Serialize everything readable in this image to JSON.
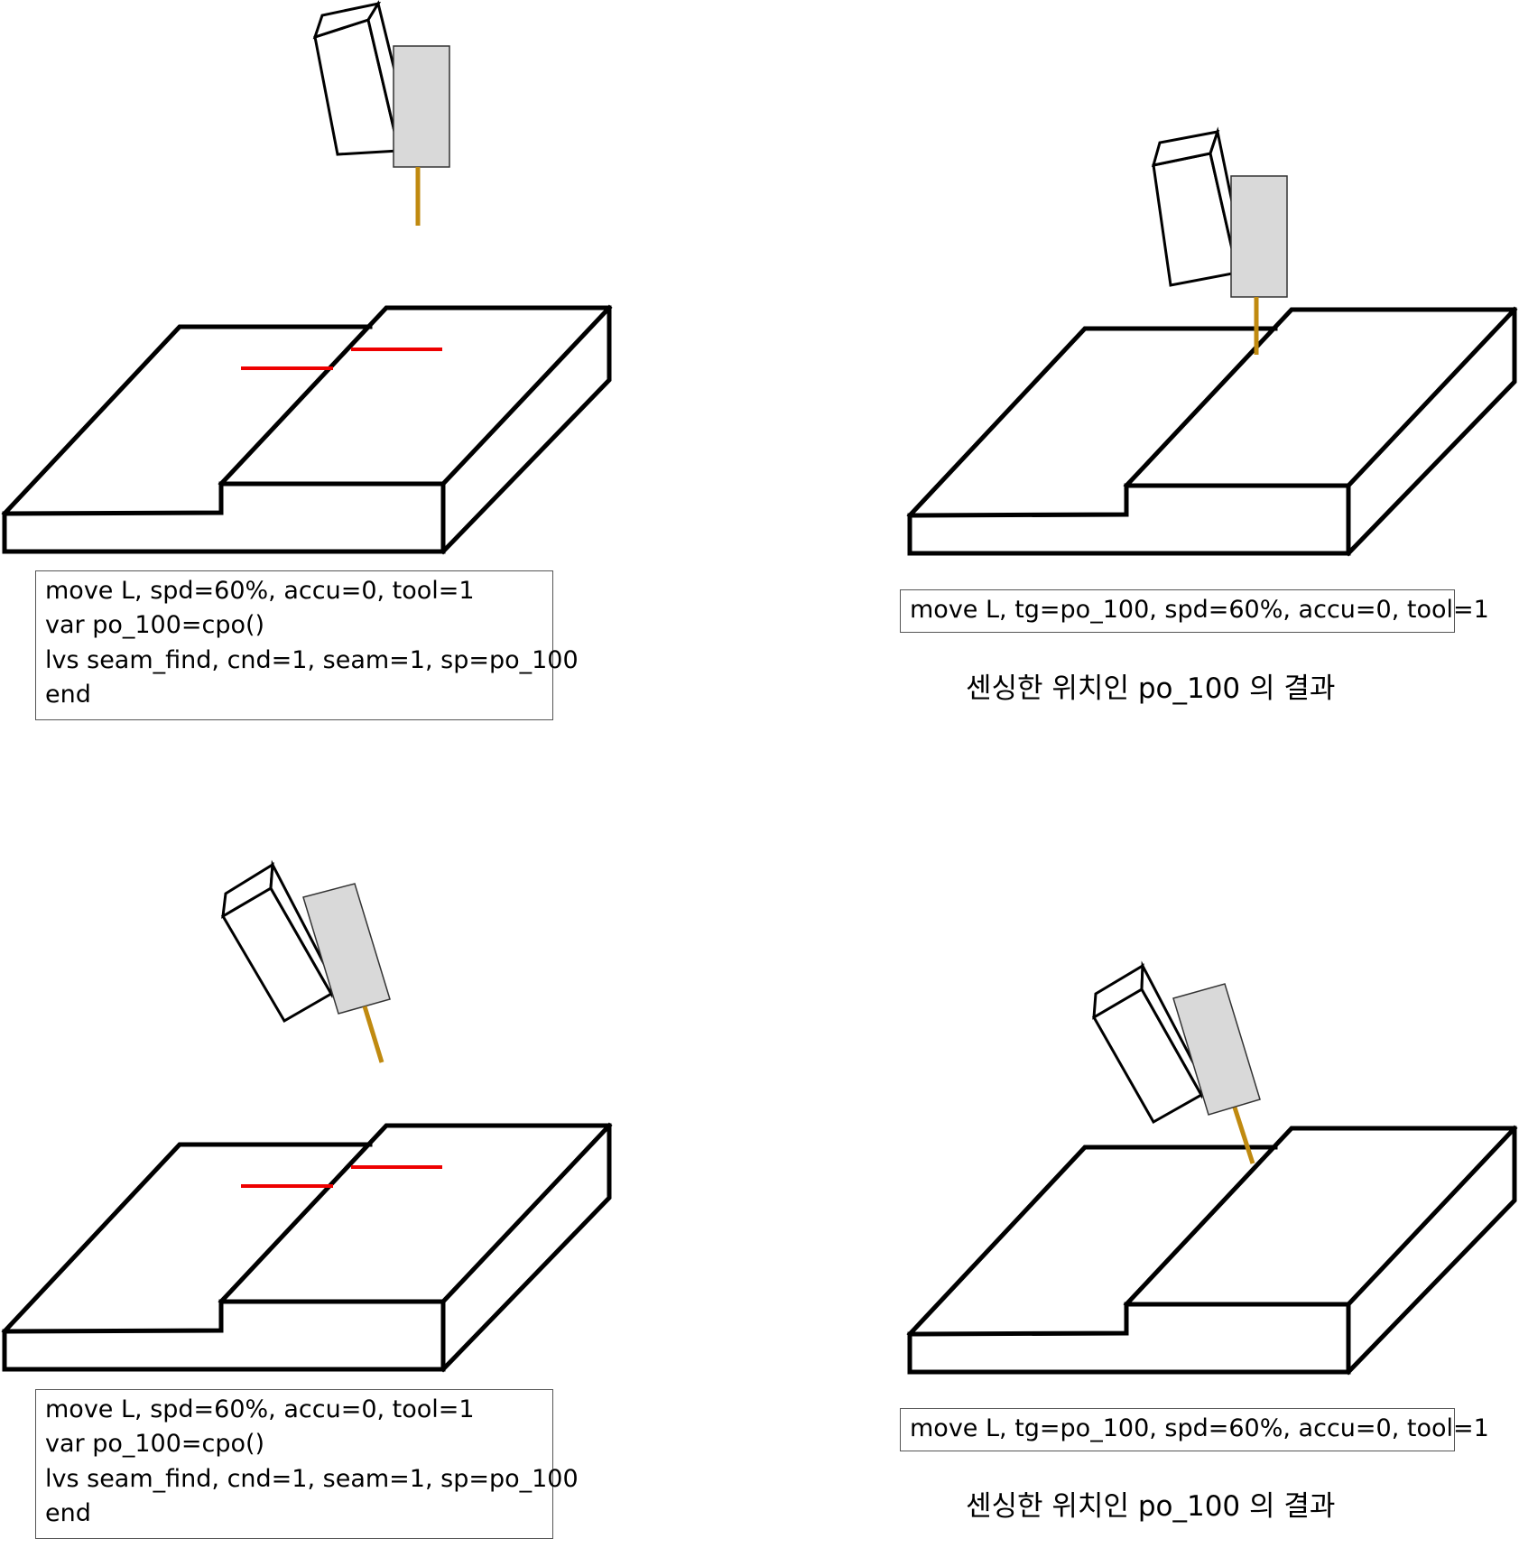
{
  "colors": {
    "outline": "#000000",
    "laser_line": "#ee0000",
    "sensor_fill": "#d9d9d9",
    "wire": "#c08a10"
  },
  "panels": [
    {
      "code_lines": [
        "move L, spd=60%, accu=0, tool=1",
        "var po_100=cpo()",
        "lvs seam_find, cnd=1, seam=1, sp=po_100",
        "end"
      ]
    },
    {
      "code_lines": [
        "move L, tg=po_100, spd=60%, accu=0, tool=1"
      ],
      "caption": "센싱한 위치인 po_100 의 결과"
    },
    {
      "code_lines": [
        "move L, spd=60%, accu=0, tool=1",
        "var po_100=cpo()",
        "lvs seam_find, cnd=1, seam=1, sp=po_100",
        "end"
      ]
    },
    {
      "code_lines": [
        "move L, tg=po_100, spd=60%, accu=0, tool=1"
      ],
      "caption": "센싱한 위치인 po_100 의 결과"
    }
  ]
}
